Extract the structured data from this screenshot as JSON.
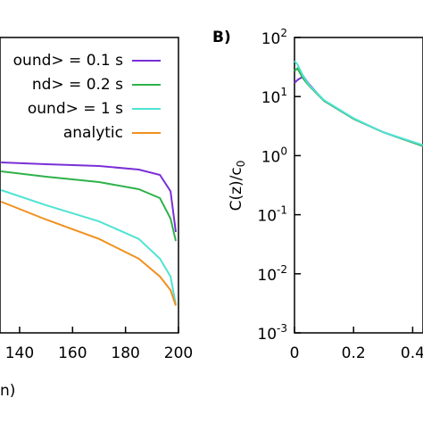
{
  "chart_data": [
    {
      "type": "line",
      "x_label": "n)",
      "log_y": true,
      "x": [
        133,
        150,
        170,
        185,
        193,
        197,
        199
      ],
      "xlim": [
        132.6,
        200
      ],
      "xticks": [
        140,
        160,
        180,
        200
      ],
      "ylim": [
        0.001,
        100
      ],
      "legend": "upper right",
      "series": [
        {
          "name": "ound> = 0.1 s",
          "color": "#7a2fd6",
          "values": [
            0.767,
            0.716,
            0.668,
            0.581,
            0.472,
            0.25,
            0.051
          ]
        },
        {
          "name": "nd> = 0.2 s",
          "color": "#2fb24a",
          "values": [
            0.542,
            0.44,
            0.357,
            0.27,
            0.191,
            0.086,
            0.036
          ]
        },
        {
          "name": "ound> = 1 s",
          "color": "#4fe3d3",
          "values": [
            0.261,
            0.145,
            0.077,
            0.039,
            0.018,
            0.009,
            0.003
          ]
        },
        {
          "name": "analytic",
          "color": "#f0901e",
          "values": [
            0.166,
            0.083,
            0.039,
            0.018,
            0.009,
            0.0053,
            0.0029
          ]
        }
      ]
    },
    {
      "type": "line",
      "panel_label": "B)",
      "y_label": "C(z)/c_0",
      "log_y": true,
      "x": [
        0,
        0.01,
        0.03,
        0.05,
        0.1,
        0.2,
        0.3,
        0.435
      ],
      "xlim": [
        0,
        0.435
      ],
      "xticks": [
        0,
        0.2,
        0.4
      ],
      "ylim": [
        0.001,
        100
      ],
      "yticks": [
        {
          "value": 100,
          "label": "10^2"
        },
        {
          "value": 10,
          "label": "10^1"
        },
        {
          "value": 1,
          "label": "10^0"
        },
        {
          "value": 0.1,
          "label": "10^-1"
        },
        {
          "value": 0.01,
          "label": "10^-2"
        },
        {
          "value": 0.001,
          "label": "10^-3"
        }
      ],
      "series": [
        {
          "name": "0.1 s",
          "color": "#7a2fd6",
          "values": [
            17,
            19,
            22,
            16,
            8.5,
            4.2,
            2.5,
            1.45
          ]
        },
        {
          "name": "0.2 s",
          "color": "#2fb24a",
          "values": [
            27,
            30,
            20,
            15,
            8.5,
            4.2,
            2.5,
            1.45
          ]
        },
        {
          "name": "1 s",
          "color": "#4fe3d3",
          "values": [
            40,
            35,
            22,
            15.5,
            8.7,
            4.3,
            2.5,
            1.5
          ]
        }
      ]
    }
  ]
}
